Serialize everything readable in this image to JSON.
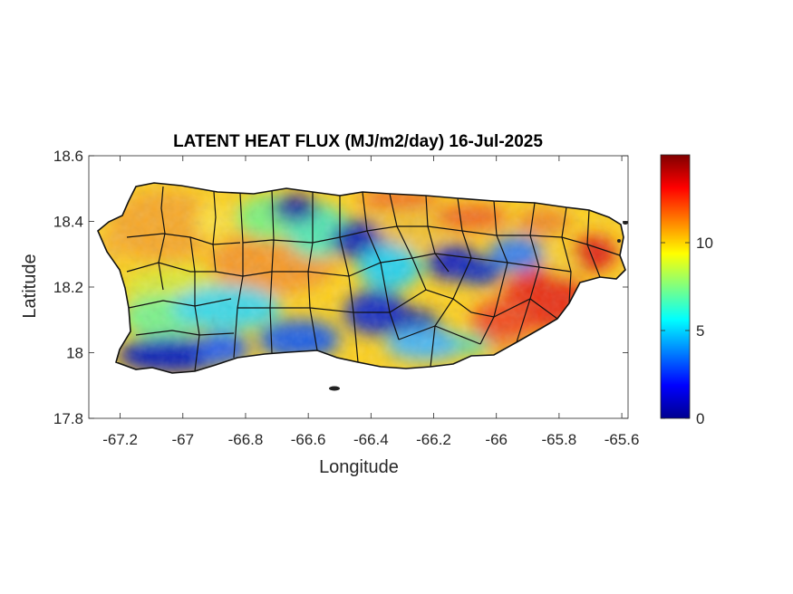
{
  "title": "LATENT HEAT FLUX (MJ/m2/day) 16-Jul-2025",
  "map": {
    "xlabel": "Longitude",
    "ylabel": "Latitude",
    "xlim": [
      -67.3,
      -65.58
    ],
    "ylim": [
      17.8,
      18.6
    ],
    "xticks": [
      -67.2,
      -67,
      -66.8,
      -66.6,
      -66.4,
      -66.2,
      -66,
      -65.8,
      -65.6
    ],
    "yticks": [
      17.8,
      18,
      18.2,
      18.4,
      18.6
    ],
    "xtick_labels": [
      "-67.2",
      "-67",
      "-66.8",
      "-66.6",
      "-66.4",
      "-66.2",
      "-66",
      "-65.8",
      "-65.6"
    ],
    "ytick_labels": [
      "17.8",
      "18",
      "18.2",
      "18.4",
      "18.6"
    ],
    "colormap": "jet",
    "color_range": [
      0,
      15
    ]
  },
  "colorbar": {
    "ticks": [
      0,
      5,
      10
    ],
    "tick_labels": [
      "0",
      "5",
      "10"
    ]
  }
}
